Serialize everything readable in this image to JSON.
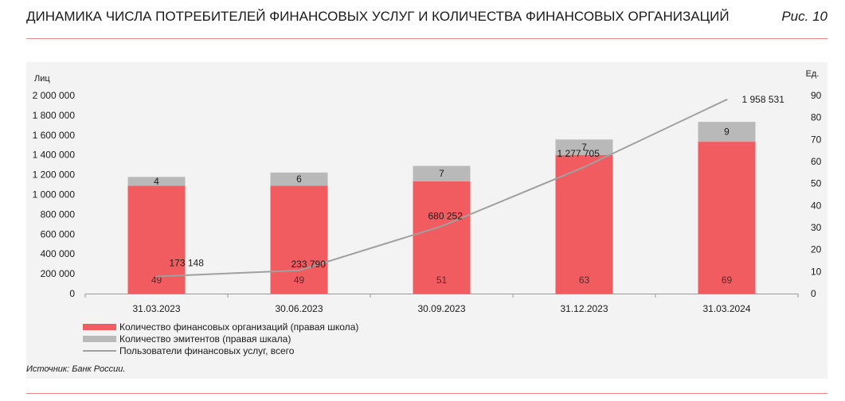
{
  "header": {
    "title": "ДИНАМИКА ЧИСЛА ПОТРЕБИТЕЛЕЙ ФИНАНСОВЫХ УСЛУГ И КОЛИЧЕСТВА ФИНАНСОВЫХ ОРГАНИЗАЦИЙ",
    "figure_label": "Рис. 10"
  },
  "source": "Источник: Банк России.",
  "colors": {
    "org": "#f05c5f",
    "emit": "#b9b9b9",
    "line": "#a0a0a0",
    "rule": "#e7888c"
  },
  "chart_data": {
    "type": "bar",
    "categories": [
      "31.03.2023",
      "30.06.2023",
      "30.09.2023",
      "31.12.2023",
      "31.03.2024"
    ],
    "left_axis": {
      "label": "Лиц",
      "ylim": [
        0,
        2000000
      ],
      "ticks": [
        "0",
        "200 000",
        "400 000",
        "600 000",
        "800 000",
        "1 000 000",
        "1 200 000",
        "1 400 000",
        "1 600 000",
        "1 800 000",
        "2 000 000"
      ]
    },
    "right_axis": {
      "label": "Ед.",
      "ylim": [
        0,
        90
      ],
      "ticks": [
        "0",
        "10",
        "20",
        "30",
        "40",
        "50",
        "60",
        "70",
        "80",
        "90"
      ]
    },
    "series": [
      {
        "name": "Количество финансовых организаций (правая школа)",
        "kind": "bar",
        "axis": "right",
        "values": [
          49,
          49,
          51,
          63,
          69
        ],
        "labels": [
          "49",
          "49",
          "51",
          "63",
          "69"
        ]
      },
      {
        "name": "Количество эмитентов (правая шкала)",
        "kind": "bar-stacked",
        "axis": "right",
        "values": [
          4,
          6,
          7,
          7,
          9
        ],
        "labels": [
          "4",
          "6",
          "7",
          "7",
          "9"
        ]
      },
      {
        "name": "Пользователи финансовых услуг, всего",
        "kind": "line",
        "axis": "left",
        "values": [
          173148,
          233790,
          680252,
          1277705,
          1958531
        ],
        "labels": [
          "173 148",
          "233 790",
          "680 252",
          "1 277 705",
          "1 958 531"
        ]
      }
    ],
    "grid": false,
    "legend_position": "bottom-left"
  }
}
